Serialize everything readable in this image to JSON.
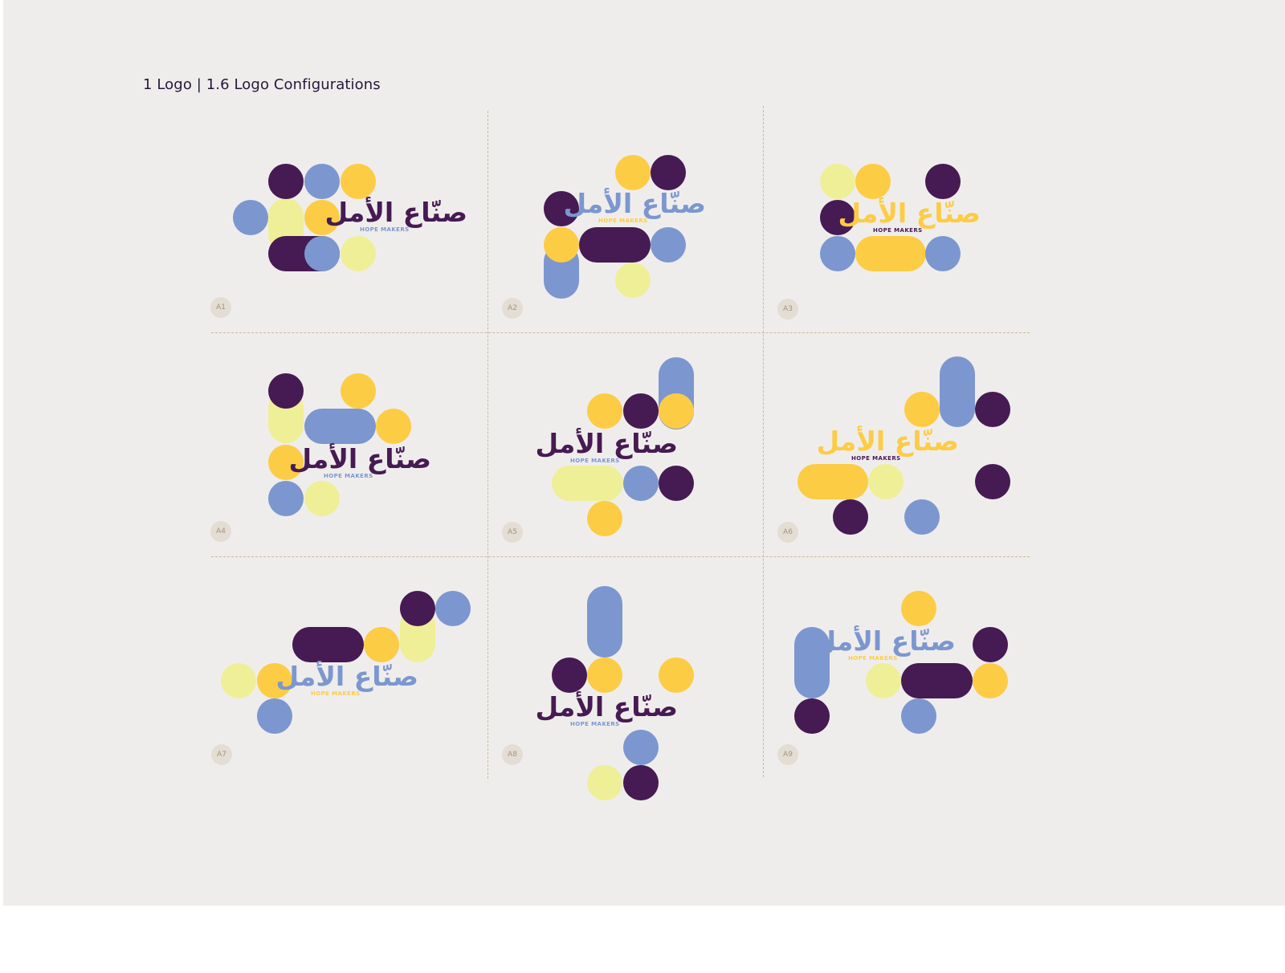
{
  "page": {
    "title": "1 Logo | 1.6 Logo Configurations"
  },
  "colors": {
    "background": "#efedec",
    "purple": "#461a52",
    "blue": "#7c97cf",
    "yellow": "#fdcc45",
    "lime": "#efef98",
    "guide": "#c9b893",
    "badge": "#e3ddd3",
    "badge_text": "#a4957d"
  },
  "logo": {
    "arabic": "صنّاع الأمل",
    "english": "HOPE MAKERS"
  },
  "configurations": [
    {
      "label": "A1",
      "arabic_color": "purple",
      "english_color": "blue"
    },
    {
      "label": "A2",
      "arabic_color": "blue",
      "english_color": "yellow"
    },
    {
      "label": "A3",
      "arabic_color": "yellow",
      "english_color": "purple"
    },
    {
      "label": "A4",
      "arabic_color": "purple",
      "english_color": "blue"
    },
    {
      "label": "A5",
      "arabic_color": "purple",
      "english_color": "blue"
    },
    {
      "label": "A6",
      "arabic_color": "yellow",
      "english_color": "purple"
    },
    {
      "label": "A7",
      "arabic_color": "blue",
      "english_color": "yellow"
    },
    {
      "label": "A8",
      "arabic_color": "purple",
      "english_color": "blue"
    },
    {
      "label": "A9",
      "arabic_color": "blue",
      "english_color": "yellow"
    }
  ]
}
